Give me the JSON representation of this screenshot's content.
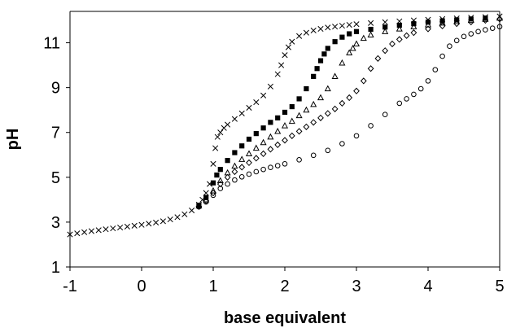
{
  "chart_data": {
    "type": "scatter",
    "title": "",
    "xlabel": "base equivalent",
    "ylabel": "pH",
    "xlim": [
      -1,
      5
    ],
    "ylim": [
      1,
      12.4
    ],
    "xticks": [
      -1,
      0,
      1,
      2,
      3,
      4,
      5
    ],
    "yticks": [
      1,
      3,
      5,
      7,
      9,
      11
    ],
    "xtick_labels": [
      "-1",
      "0",
      "1",
      "2",
      "3",
      "4",
      "5"
    ],
    "ytick_labels": [
      "1",
      "3",
      "5",
      "7",
      "9",
      "11"
    ],
    "grid": false,
    "legend": "none",
    "series": [
      {
        "marker": "x",
        "x": [
          -1.0,
          -0.9,
          -0.8,
          -0.7,
          -0.6,
          -0.5,
          -0.4,
          -0.3,
          -0.2,
          -0.1,
          0.0,
          0.1,
          0.2,
          0.3,
          0.4,
          0.5,
          0.6,
          0.7,
          0.8,
          0.85,
          0.9,
          0.95,
          1.0,
          1.03,
          1.06,
          1.1,
          1.15,
          1.2,
          1.3,
          1.4,
          1.5,
          1.6,
          1.7,
          1.8,
          1.9,
          1.95,
          2.0,
          2.05,
          2.1,
          2.2,
          2.3,
          2.4,
          2.5,
          2.6,
          2.7,
          2.8,
          2.9,
          3.0,
          3.2,
          3.4,
          3.6,
          3.8,
          4.0,
          4.2,
          4.4,
          4.6,
          4.8,
          5.0
        ],
        "y": [
          2.45,
          2.5,
          2.55,
          2.6,
          2.64,
          2.68,
          2.72,
          2.76,
          2.8,
          2.84,
          2.88,
          2.93,
          2.98,
          3.04,
          3.12,
          3.22,
          3.35,
          3.52,
          3.78,
          4.0,
          4.3,
          4.7,
          5.6,
          6.3,
          6.8,
          7.0,
          7.2,
          7.35,
          7.6,
          7.85,
          8.1,
          8.35,
          8.65,
          9.05,
          9.6,
          10.0,
          10.45,
          10.8,
          11.05,
          11.3,
          11.45,
          11.55,
          11.62,
          11.68,
          11.72,
          11.76,
          11.8,
          11.83,
          11.88,
          11.92,
          11.96,
          12.0,
          12.03,
          12.06,
          12.09,
          12.12,
          12.15,
          12.18
        ]
      },
      {
        "marker": "filled-square",
        "x": [
          0.8,
          0.9,
          1.0,
          1.05,
          1.1,
          1.2,
          1.3,
          1.4,
          1.5,
          1.6,
          1.7,
          1.8,
          1.9,
          2.0,
          2.1,
          2.2,
          2.3,
          2.4,
          2.45,
          2.5,
          2.55,
          2.6,
          2.7,
          2.8,
          2.9,
          3.0,
          3.2,
          3.4,
          3.6,
          3.8,
          4.0,
          4.2,
          4.4,
          4.6,
          4.8
        ],
        "y": [
          3.75,
          4.1,
          4.75,
          5.1,
          5.35,
          5.75,
          6.1,
          6.4,
          6.7,
          6.95,
          7.2,
          7.45,
          7.65,
          7.9,
          8.15,
          8.5,
          8.95,
          9.5,
          9.85,
          10.2,
          10.5,
          10.75,
          11.05,
          11.25,
          11.4,
          11.5,
          11.6,
          11.7,
          11.78,
          11.85,
          11.92,
          11.98,
          12.02,
          12.06,
          12.1
        ]
      },
      {
        "marker": "open-triangle",
        "x": [
          0.8,
          0.9,
          1.0,
          1.1,
          1.2,
          1.3,
          1.4,
          1.5,
          1.6,
          1.7,
          1.8,
          1.9,
          2.0,
          2.1,
          2.2,
          2.3,
          2.4,
          2.5,
          2.6,
          2.7,
          2.8,
          2.9,
          2.95,
          3.0,
          3.1,
          3.2,
          3.4,
          3.6,
          3.8,
          4.0,
          4.2,
          4.4,
          4.6,
          4.8,
          5.0
        ],
        "y": [
          3.72,
          4.0,
          4.4,
          4.85,
          5.2,
          5.5,
          5.8,
          6.05,
          6.3,
          6.55,
          6.8,
          7.05,
          7.3,
          7.5,
          7.75,
          8.0,
          8.25,
          8.55,
          8.95,
          9.5,
          10.1,
          10.55,
          10.75,
          10.95,
          11.2,
          11.35,
          11.5,
          11.62,
          11.72,
          11.8,
          11.88,
          11.95,
          12.0,
          12.05,
          12.1
        ]
      },
      {
        "marker": "open-diamond",
        "x": [
          0.8,
          0.9,
          1.0,
          1.1,
          1.2,
          1.3,
          1.4,
          1.5,
          1.6,
          1.7,
          1.8,
          1.9,
          2.0,
          2.1,
          2.2,
          2.3,
          2.4,
          2.5,
          2.6,
          2.7,
          2.8,
          2.9,
          3.0,
          3.1,
          3.2,
          3.3,
          3.4,
          3.5,
          3.6,
          3.7,
          3.8,
          4.0,
          4.2,
          4.4,
          4.6,
          4.8,
          5.0
        ],
        "y": [
          3.7,
          3.95,
          4.3,
          4.7,
          5.0,
          5.25,
          5.45,
          5.65,
          5.85,
          6.05,
          6.25,
          6.45,
          6.65,
          6.85,
          7.05,
          7.25,
          7.45,
          7.65,
          7.85,
          8.05,
          8.3,
          8.55,
          8.85,
          9.3,
          9.85,
          10.3,
          10.65,
          10.95,
          11.15,
          11.32,
          11.45,
          11.62,
          11.75,
          11.85,
          11.93,
          12.0,
          12.06
        ]
      },
      {
        "marker": "open-circle",
        "x": [
          0.8,
          0.9,
          1.0,
          1.1,
          1.2,
          1.3,
          1.4,
          1.5,
          1.6,
          1.7,
          1.8,
          1.9,
          2.0,
          2.2,
          2.4,
          2.6,
          2.8,
          3.0,
          3.2,
          3.4,
          3.6,
          3.7,
          3.8,
          3.9,
          4.0,
          4.1,
          4.2,
          4.3,
          4.4,
          4.5,
          4.6,
          4.7,
          4.8,
          4.9,
          5.0
        ],
        "y": [
          3.68,
          3.9,
          4.2,
          4.5,
          4.7,
          4.88,
          5.02,
          5.14,
          5.25,
          5.35,
          5.44,
          5.52,
          5.6,
          5.78,
          5.98,
          6.2,
          6.5,
          6.85,
          7.3,
          7.8,
          8.3,
          8.5,
          8.7,
          8.95,
          9.3,
          9.8,
          10.4,
          10.85,
          11.1,
          11.28,
          11.4,
          11.5,
          11.58,
          11.65,
          11.72
        ]
      }
    ]
  }
}
